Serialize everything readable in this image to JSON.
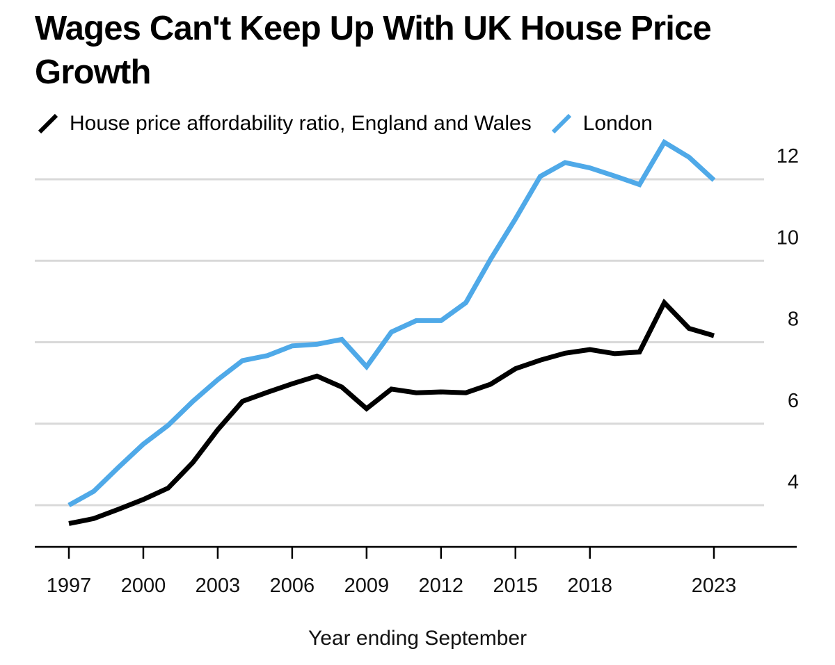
{
  "chart_data": {
    "type": "line",
    "title": "Wages Can't Keep Up With UK House Price Growth",
    "xlabel": "Year ending September",
    "ylabel": "",
    "xlim": [
      1996,
      2026
    ],
    "ylim": [
      3,
      12.5
    ],
    "x_ticks": [
      1997,
      2000,
      2003,
      2006,
      2009,
      2012,
      2015,
      2018,
      2023
    ],
    "y_ticks": [
      4,
      6,
      8,
      10,
      12
    ],
    "grid": true,
    "legend_placement": "top-left",
    "x": [
      1997,
      1998,
      1999,
      2000,
      2001,
      2002,
      2003,
      2004,
      2005,
      2006,
      2007,
      2008,
      2009,
      2010,
      2011,
      2012,
      2013,
      2014,
      2015,
      2016,
      2017,
      2018,
      2019,
      2020,
      2021,
      2022,
      2023
    ],
    "series": [
      {
        "name": "House price affordability ratio, England and Wales",
        "color": "#000000",
        "values": [
          3.55,
          3.67,
          3.9,
          4.14,
          4.42,
          5.05,
          5.85,
          6.55,
          6.77,
          6.98,
          7.17,
          6.9,
          6.37,
          6.85,
          6.76,
          6.78,
          6.76,
          6.97,
          7.35,
          7.56,
          7.73,
          7.82,
          7.72,
          7.76,
          8.97,
          8.34,
          8.16
        ]
      },
      {
        "name": "London",
        "color": "#4fa9e8",
        "values": [
          4.0,
          4.34,
          4.93,
          5.5,
          5.96,
          6.55,
          7.08,
          7.55,
          7.67,
          7.91,
          7.95,
          8.07,
          7.4,
          8.25,
          8.53,
          8.53,
          8.97,
          10.04,
          11.03,
          12.07,
          12.41,
          12.28,
          12.08,
          11.87,
          12.91,
          12.54,
          11.98
        ]
      }
    ]
  }
}
